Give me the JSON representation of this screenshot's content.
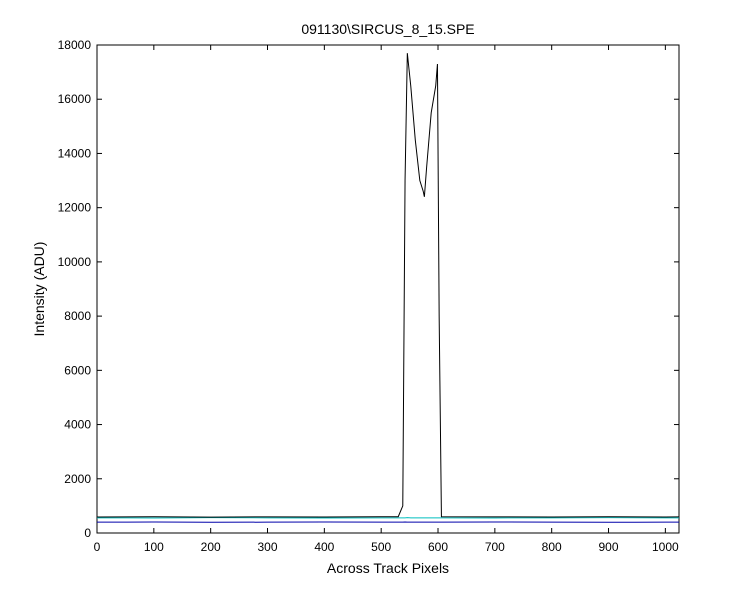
{
  "chart_data": {
    "type": "line",
    "title": "091130\\SIRCUS_8_15.SPE",
    "xlabel": "Across Track Pixels",
    "ylabel": "Intensity (ADU)",
    "x": [
      0,
      100,
      200,
      300,
      400,
      500,
      530,
      538,
      542,
      546,
      552,
      560,
      568,
      574,
      576,
      580,
      588,
      596,
      599,
      602,
      606,
      700,
      800,
      900,
      1000,
      1024
    ],
    "series": [
      {
        "color": "#000000",
        "values": [
          590,
          600,
          585,
          595,
          590,
          600,
          600,
          1000,
          13000,
          17700,
          16500,
          14500,
          13000,
          12600,
          12400,
          13500,
          15500,
          16500,
          17300,
          8000,
          600,
          595,
          590,
          600,
          590,
          595
        ]
      },
      {
        "color": "#00bfbf",
        "values": [
          560,
          555,
          565,
          560,
          555,
          560,
          560,
          560,
          560,
          565,
          560,
          560,
          560,
          560,
          560,
          560,
          560,
          560,
          560,
          560,
          560,
          555,
          560,
          565,
          560,
          560
        ]
      },
      {
        "color": "#0000aa",
        "values": [
          400,
          405,
          395,
          400,
          405,
          400,
          400,
          400,
          405,
          400,
          400,
          400,
          400,
          400,
          400,
          400,
          400,
          400,
          400,
          400,
          400,
          405,
          400,
          395,
          400,
          400
        ]
      }
    ],
    "xlim": [
      0,
      1024
    ],
    "ylim": [
      0,
      18000
    ],
    "xticks": [
      0,
      100,
      200,
      300,
      400,
      500,
      600,
      700,
      800,
      900,
      1000
    ],
    "yticks": [
      0,
      2000,
      4000,
      6000,
      8000,
      10000,
      12000,
      14000,
      16000,
      18000
    ]
  }
}
